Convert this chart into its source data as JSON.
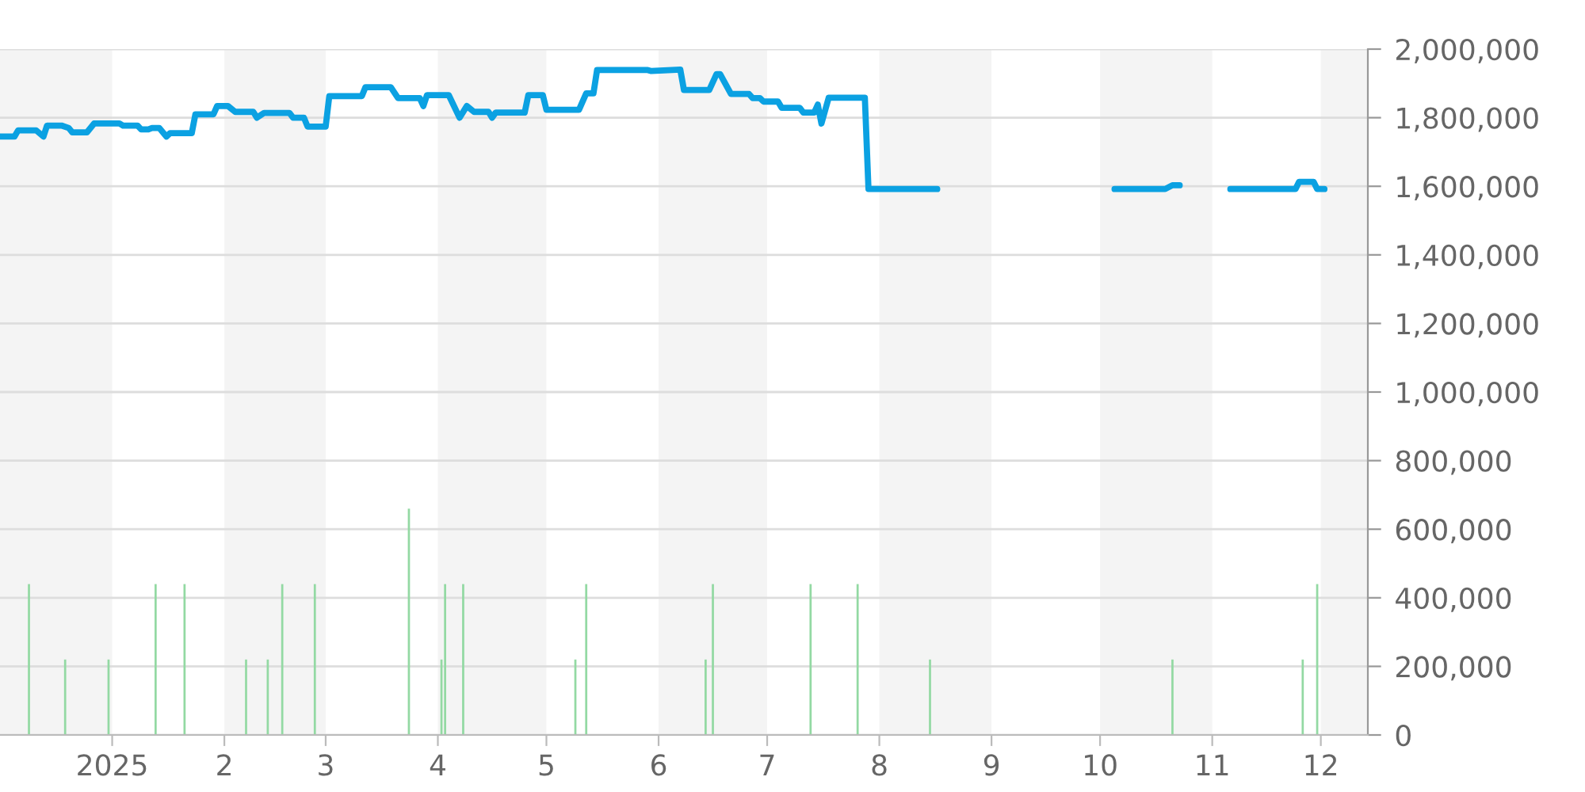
{
  "chart_data": {
    "type": "line",
    "xlim": [
      "2024-12-01",
      "2025-12-14"
    ],
    "xticks": [
      {
        "value": "2025-01-01",
        "label": "2025"
      },
      {
        "value": "2025-02-01",
        "label": "2"
      },
      {
        "value": "2025-03-01",
        "label": "3"
      },
      {
        "value": "2025-04-01",
        "label": "4"
      },
      {
        "value": "2025-05-01",
        "label": "5"
      },
      {
        "value": "2025-06-01",
        "label": "6"
      },
      {
        "value": "2025-07-01",
        "label": "7"
      },
      {
        "value": "2025-08-01",
        "label": "8"
      },
      {
        "value": "2025-09-01",
        "label": "9"
      },
      {
        "value": "2025-10-01",
        "label": "10"
      },
      {
        "value": "2025-11-01",
        "label": "11"
      },
      {
        "value": "2025-12-01",
        "label": "12"
      }
    ],
    "ylim": [
      0,
      2000000
    ],
    "yticks": [
      {
        "value": 0,
        "label": "0"
      },
      {
        "value": 200000,
        "label": "200,000"
      },
      {
        "value": 400000,
        "label": "400,000"
      },
      {
        "value": 600000,
        "label": "600,000"
      },
      {
        "value": 800000,
        "label": "800,000"
      },
      {
        "value": 1000000,
        "label": "1,000,000"
      },
      {
        "value": 1200000,
        "label": "1,200,000"
      },
      {
        "value": 1400000,
        "label": "1,400,000"
      },
      {
        "value": 1600000,
        "label": "1,600,000"
      },
      {
        "value": 1800000,
        "label": "1,800,000"
      },
      {
        "value": 2000000,
        "label": "2,000,000"
      }
    ],
    "grid": "y",
    "bands": [
      {
        "axis": "x",
        "from": "2024-12-01",
        "to": "2025-01-01",
        "color": "#f4f4f4"
      },
      {
        "axis": "x",
        "from": "2025-02-01",
        "to": "2025-03-01",
        "color": "#f4f4f4"
      },
      {
        "axis": "x",
        "from": "2025-04-01",
        "to": "2025-05-01",
        "color": "#f4f4f4"
      },
      {
        "axis": "x",
        "from": "2025-06-01",
        "to": "2025-07-01",
        "color": "#f4f4f4"
      },
      {
        "axis": "x",
        "from": "2025-08-01",
        "to": "2025-09-01",
        "color": "#f4f4f4"
      },
      {
        "axis": "x",
        "from": "2025-10-01",
        "to": "2025-11-01",
        "color": "#f4f4f4"
      },
      {
        "axis": "x",
        "from": "2025-12-01",
        "to": "2025-12-14",
        "color": "#f4f4f4"
      }
    ],
    "series": [
      {
        "type": "bar",
        "color": "#93d9a3",
        "x": [
          "2024-12-09",
          "2024-12-19",
          "2024-12-31",
          "2025-01-13",
          "2025-01-21",
          "2025-02-07",
          "2025-02-13",
          "2025-02-17",
          "2025-02-26",
          "2025-03-24",
          "2025-04-02",
          "2025-04-03",
          "2025-04-08",
          "2025-05-09",
          "2025-05-12",
          "2025-06-14",
          "2025-06-16",
          "2025-07-13",
          "2025-07-26",
          "2025-08-15",
          "2025-10-21",
          "2025-11-26",
          "2025-11-30"
        ],
        "values": [
          440000,
          220000,
          220000,
          440000,
          440000,
          220000,
          220000,
          440000,
          440000,
          660000,
          220000,
          440000,
          440000,
          220000,
          440000,
          220000,
          440000,
          440000,
          440000,
          220000,
          220000,
          220000,
          440000
        ]
      },
      {
        "color": "#0ba1e2",
        "x": [
          "2024-12-01",
          "2024-12-05",
          "2024-12-06",
          "2024-12-11",
          "2024-12-13",
          "2024-12-14",
          "2024-12-18",
          "2024-12-20",
          "2024-12-21",
          "2024-12-25",
          "2024-12-27",
          "2025-01-03",
          "2025-01-04",
          "2025-01-08",
          "2025-01-09",
          "2025-01-11",
          "2025-01-12",
          "2025-01-14",
          "2025-01-16",
          "2025-01-17",
          "2025-01-23",
          "2025-01-24",
          "2025-01-29",
          "2025-01-30",
          "2025-02-02",
          "2025-02-04",
          "2025-02-09",
          "2025-02-10",
          "2025-02-12",
          "2025-02-19",
          "2025-02-20",
          "2025-02-23",
          "2025-02-24",
          "2025-03-01",
          "2025-03-02",
          "2025-03-11",
          "2025-03-12",
          "2025-03-19",
          "2025-03-21",
          "2025-03-27",
          "2025-03-28",
          "2025-03-29",
          "2025-04-04",
          "2025-04-07",
          "2025-04-09",
          "2025-04-11",
          "2025-04-15",
          "2025-04-16",
          "2025-04-17",
          "2025-04-25",
          "2025-04-26",
          "2025-04-30",
          "2025-05-01",
          "2025-05-10",
          "2025-05-12",
          "2025-05-14",
          "2025-05-15",
          "2025-05-29",
          "2025-05-30",
          "2025-06-07",
          "2025-06-08",
          "2025-06-15",
          "2025-06-17",
          "2025-06-18",
          "2025-06-21",
          "2025-06-26",
          "2025-06-27",
          "2025-06-29",
          "2025-06-30",
          "2025-07-04",
          "2025-07-05",
          "2025-07-10",
          "2025-07-11",
          "2025-07-14",
          "2025-07-15",
          "2025-07-16",
          "2025-07-18",
          "2025-07-28",
          "2025-07-29",
          "2025-08-17",
          "2025-09-01",
          "2025-10-05",
          "2025-10-19",
          "2025-10-21",
          "2025-10-23",
          "2025-11-01",
          "2025-11-06",
          "2025-11-24",
          "2025-11-25",
          "2025-11-29",
          "2025-11-30",
          "2025-12-02"
        ],
        "values": [
          1745000,
          1745000,
          1763000,
          1763000,
          1745000,
          1777000,
          1777000,
          1770000,
          1757000,
          1757000,
          1783000,
          1783000,
          1777000,
          1777000,
          1766000,
          1766000,
          1770000,
          1770000,
          1745000,
          1755000,
          1755000,
          1810000,
          1810000,
          1834000,
          1834000,
          1817000,
          1817000,
          1800000,
          1814000,
          1814000,
          1800000,
          1800000,
          1774000,
          1774000,
          1863000,
          1863000,
          1889000,
          1889000,
          1857000,
          1857000,
          1834000,
          1866000,
          1866000,
          1800000,
          1834000,
          1817000,
          1817000,
          1800000,
          1815000,
          1815000,
          1866000,
          1866000,
          1823000,
          1823000,
          1871000,
          1871000,
          1939000,
          1939000,
          1936000,
          1940000,
          1881000,
          1881000,
          1927000,
          1927000,
          1869000,
          1869000,
          1857000,
          1857000,
          1847000,
          1847000,
          1829000,
          1829000,
          1815000,
          1815000,
          1838000,
          1783000,
          1858000,
          1858000,
          1592000,
          1592000,
          null,
          1592000,
          1592000,
          1603000,
          1603000,
          null,
          1592000,
          1592000,
          1613000,
          1613000,
          1592000,
          1592000
        ]
      }
    ]
  }
}
